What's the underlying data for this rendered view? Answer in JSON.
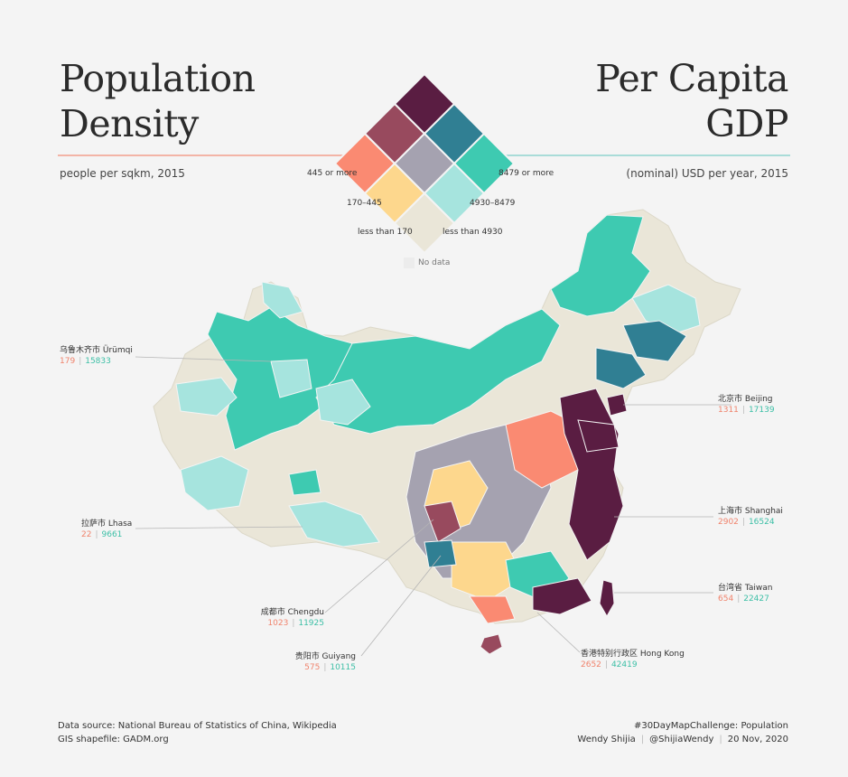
{
  "header": {
    "left_title_line1": "Population",
    "left_title_line2": "Density",
    "left_subtitle": "people per sqkm, 2015",
    "right_title_line1": "Per Capita",
    "right_title_line2": "GDP",
    "right_subtitle": "(nominal) USD per year, 2015"
  },
  "legend": {
    "density_high": "445 or more",
    "density_mid": "170–445",
    "density_low": "less than 170",
    "gdp_high": "8479 or more",
    "gdp_mid": "4930–8479",
    "gdp_low": "less than 4930",
    "no_data": "No data",
    "colors": {
      "d_high_g_high": "#5a1d42",
      "d_high_g_mid": "#984a5e",
      "d_mid_g_high": "#307f93",
      "d_high_g_low": "#fa8a72",
      "d_mid_g_mid": "#a5a2b0",
      "d_low_g_high": "#3ecab1",
      "d_mid_g_low": "#fdd78d",
      "d_low_g_mid": "#a6e4de",
      "d_low_g_low": "#eae6d8",
      "no_data": "#ececec"
    }
  },
  "callouts": {
    "urumqi": {
      "name": "乌鲁木齐市 Ürümqi",
      "density": "179",
      "gdp": "15833"
    },
    "beijing": {
      "name": "北京市 Beijing",
      "density": "1311",
      "gdp": "17139"
    },
    "lhasa": {
      "name": "拉萨市 Lhasa",
      "density": "22",
      "gdp": "9661"
    },
    "shanghai": {
      "name": "上海市 Shanghai",
      "density": "2902",
      "gdp": "16524"
    },
    "taiwan": {
      "name": "台湾省 Taiwan",
      "density": "654",
      "gdp": "22427"
    },
    "chengdu": {
      "name": "成都市 Chengdu",
      "density": "1023",
      "gdp": "11925"
    },
    "guiyang": {
      "name": "贵阳市 Guiyang",
      "density": "575",
      "gdp": "10115"
    },
    "hongkong": {
      "name": "香港特别行政区 Hong Kong",
      "density": "2652",
      "gdp": "42419"
    }
  },
  "footer": {
    "source_line1": "Data source: National Bureau of Statistics of China, Wikipedia",
    "source_line2": "GIS shapefile: GADM.org",
    "challenge": "#30DayMapChallenge: Population",
    "author": "Wendy Shijia",
    "handle": "@ShijiaWendy",
    "date": "20 Nov, 2020"
  }
}
